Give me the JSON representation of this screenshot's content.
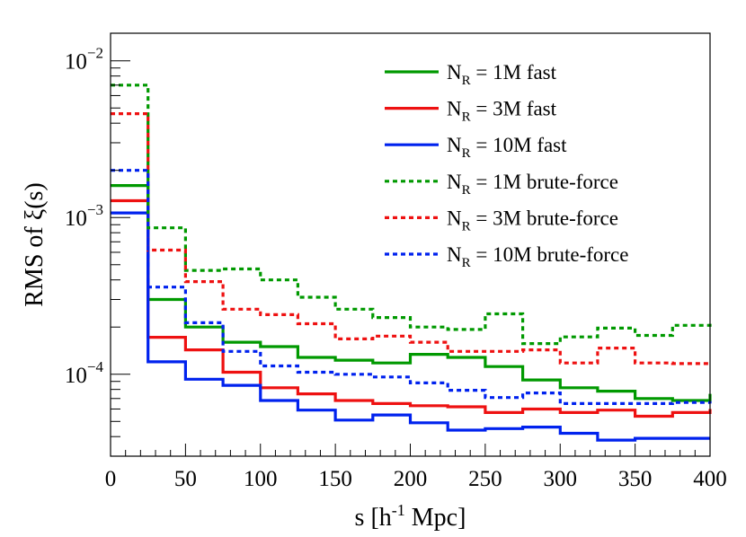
{
  "chart_data": {
    "type": "step-histogram",
    "title": "",
    "xlabel": {
      "main": "s [h",
      "sup": "-1",
      "tail": " Mpc]"
    },
    "ylabel": {
      "main": "RMS of ",
      "xi": "ξ",
      "tail": "(s)"
    },
    "xlim": [
      0,
      400
    ],
    "ylim": [
      3e-05,
      0.015
    ],
    "yscale": "log",
    "x_ticks": [
      0,
      50,
      100,
      150,
      200,
      250,
      300,
      350,
      400
    ],
    "x_tick_labels": [
      "0",
      "50",
      "100",
      "150",
      "200",
      "250",
      "300",
      "350",
      "400"
    ],
    "y_ticks": [
      {
        "value": 0.01,
        "base": "10",
        "exp": "−2"
      },
      {
        "value": 0.001,
        "base": "10",
        "exp": "−3"
      },
      {
        "value": 0.0001,
        "base": "10",
        "exp": "−4"
      }
    ],
    "bin_edges": [
      0,
      25,
      50,
      75,
      100,
      125,
      150,
      175,
      200,
      225,
      250,
      275,
      300,
      325,
      350,
      375,
      400
    ],
    "legend_position": "top-right",
    "series": [
      {
        "name": "1M fast",
        "label_pre": "N",
        "label_sub": "R",
        "label_post": " = 1M fast",
        "color": "#009900",
        "style": "solid",
        "values": [
          0.0016,
          0.0003,
          0.0002,
          0.00016,
          0.00015,
          0.000128,
          0.000123,
          0.000118,
          0.000134,
          0.000128,
          0.000112,
          9.2e-05,
          8.2e-05,
          7.8e-05,
          7e-05,
          6.8e-05,
          7.5e-05
        ]
      },
      {
        "name": "3M fast",
        "label_pre": "N",
        "label_sub": "R",
        "label_post": " = 3M fast",
        "color": "#ee1111",
        "style": "solid",
        "values": [
          0.00128,
          0.000172,
          0.000143,
          0.000103,
          8.2e-05,
          7.5e-05,
          6.8e-05,
          6.5e-05,
          6.3e-05,
          6.2e-05,
          5.7e-05,
          6e-05,
          5.7e-05,
          5.9e-05,
          5.4e-05,
          5.7e-05,
          6e-05
        ]
      },
      {
        "name": "10M fast",
        "label_pre": "N",
        "label_sub": "R",
        "label_post": " = 10M fast",
        "color": "#0022ee",
        "style": "solid",
        "values": [
          0.00107,
          0.00012,
          9.3e-05,
          8.5e-05,
          6.8e-05,
          5.9e-05,
          5.1e-05,
          5.5e-05,
          4.9e-05,
          4.4e-05,
          4.5e-05,
          4.6e-05,
          4.2e-05,
          3.8e-05,
          3.9e-05,
          3.9e-05,
          3.9e-05
        ]
      },
      {
        "name": "1M brute-force",
        "label_pre": "N",
        "label_sub": "R",
        "label_post": " = 1M brute-force",
        "color": "#009900",
        "style": "dashed",
        "values": [
          0.007,
          0.00086,
          0.00046,
          0.00047,
          0.0004,
          0.00031,
          0.00026,
          0.00023,
          0.0002,
          0.000193,
          0.000243,
          0.000157,
          0.000173,
          0.000197,
          0.000177,
          0.000205,
          0.00022
        ]
      },
      {
        "name": "3M brute-force",
        "label_pre": "N",
        "label_sub": "R",
        "label_post": " = 3M brute-force",
        "color": "#ee1111",
        "style": "dashed",
        "values": [
          0.0046,
          0.00062,
          0.00039,
          0.00026,
          0.00024,
          0.00021,
          0.000168,
          0.000175,
          0.00016,
          0.00014,
          0.00014,
          0.000143,
          0.000118,
          0.000147,
          0.000118,
          0.000117,
          0.000116
        ]
      },
      {
        "name": "10M brute-force",
        "label_pre": "N",
        "label_sub": "R",
        "label_post": " = 10M brute-force",
        "color": "#0022ee",
        "style": "dashed",
        "values": [
          0.002,
          0.00036,
          0.000213,
          0.00014,
          0.000113,
          0.000103,
          0.0001,
          9.6e-05,
          8.8e-05,
          7.9e-05,
          7.1e-05,
          7.6e-05,
          6.5e-05,
          6.5e-05,
          6.5e-05,
          6.6e-05,
          6.5e-05
        ]
      }
    ]
  }
}
